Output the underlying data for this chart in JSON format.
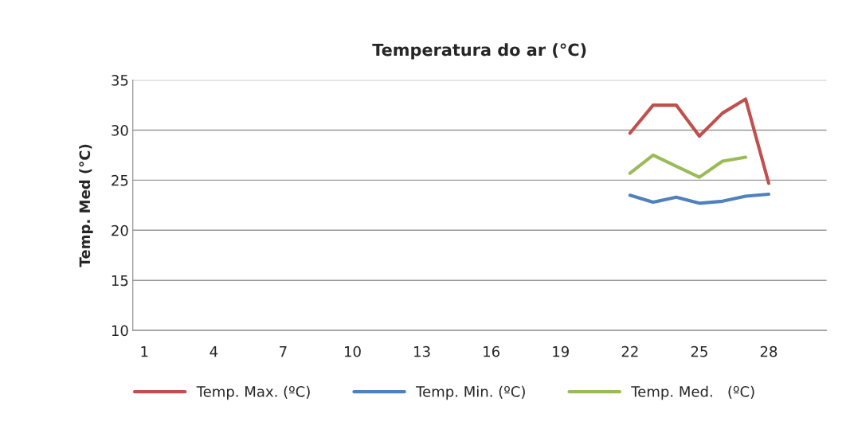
{
  "chart_data": {
    "type": "line",
    "title": "Temperatura do ar (°C)",
    "ylabel": "Temp. Med (°C)",
    "categories": [
      "1",
      null,
      null,
      "4",
      null,
      null,
      "7",
      null,
      null,
      "10",
      null,
      null,
      "13",
      null,
      null,
      "16",
      null,
      null,
      "19",
      null,
      null,
      "22",
      null,
      null,
      "25",
      null,
      null,
      "28",
      null,
      null
    ],
    "series": [
      {
        "name": "Temp. Max. (ºC)",
        "color": "#c0504d",
        "values": [
          null,
          null,
          null,
          null,
          null,
          null,
          null,
          null,
          null,
          null,
          null,
          null,
          null,
          null,
          null,
          null,
          null,
          null,
          null,
          null,
          null,
          29.7,
          32.5,
          32.5,
          29.4,
          31.7,
          33.1,
          24.7,
          null,
          null
        ]
      },
      {
        "name": "Temp. Min. (ºC)",
        "color": "#4f81bd",
        "values": [
          null,
          null,
          null,
          null,
          null,
          null,
          null,
          null,
          null,
          null,
          null,
          null,
          null,
          null,
          null,
          null,
          null,
          null,
          null,
          null,
          null,
          23.5,
          22.8,
          23.3,
          22.7,
          22.9,
          23.4,
          23.6,
          null,
          null
        ]
      },
      {
        "name": "Temp. Med.   (ºC)",
        "color": "#9bbb59",
        "values": [
          null,
          null,
          null,
          null,
          null,
          null,
          null,
          null,
          null,
          null,
          null,
          null,
          null,
          null,
          null,
          null,
          null,
          null,
          null,
          null,
          null,
          25.7,
          27.5,
          26.4,
          25.3,
          26.9,
          27.3,
          null,
          null,
          null
        ]
      }
    ],
    "ylim": [
      10,
      35
    ],
    "yticks": [
      10,
      15,
      20,
      25,
      30,
      35
    ],
    "grid": "y",
    "legend": "bottom",
    "marker": "none",
    "line_style": "solid"
  }
}
